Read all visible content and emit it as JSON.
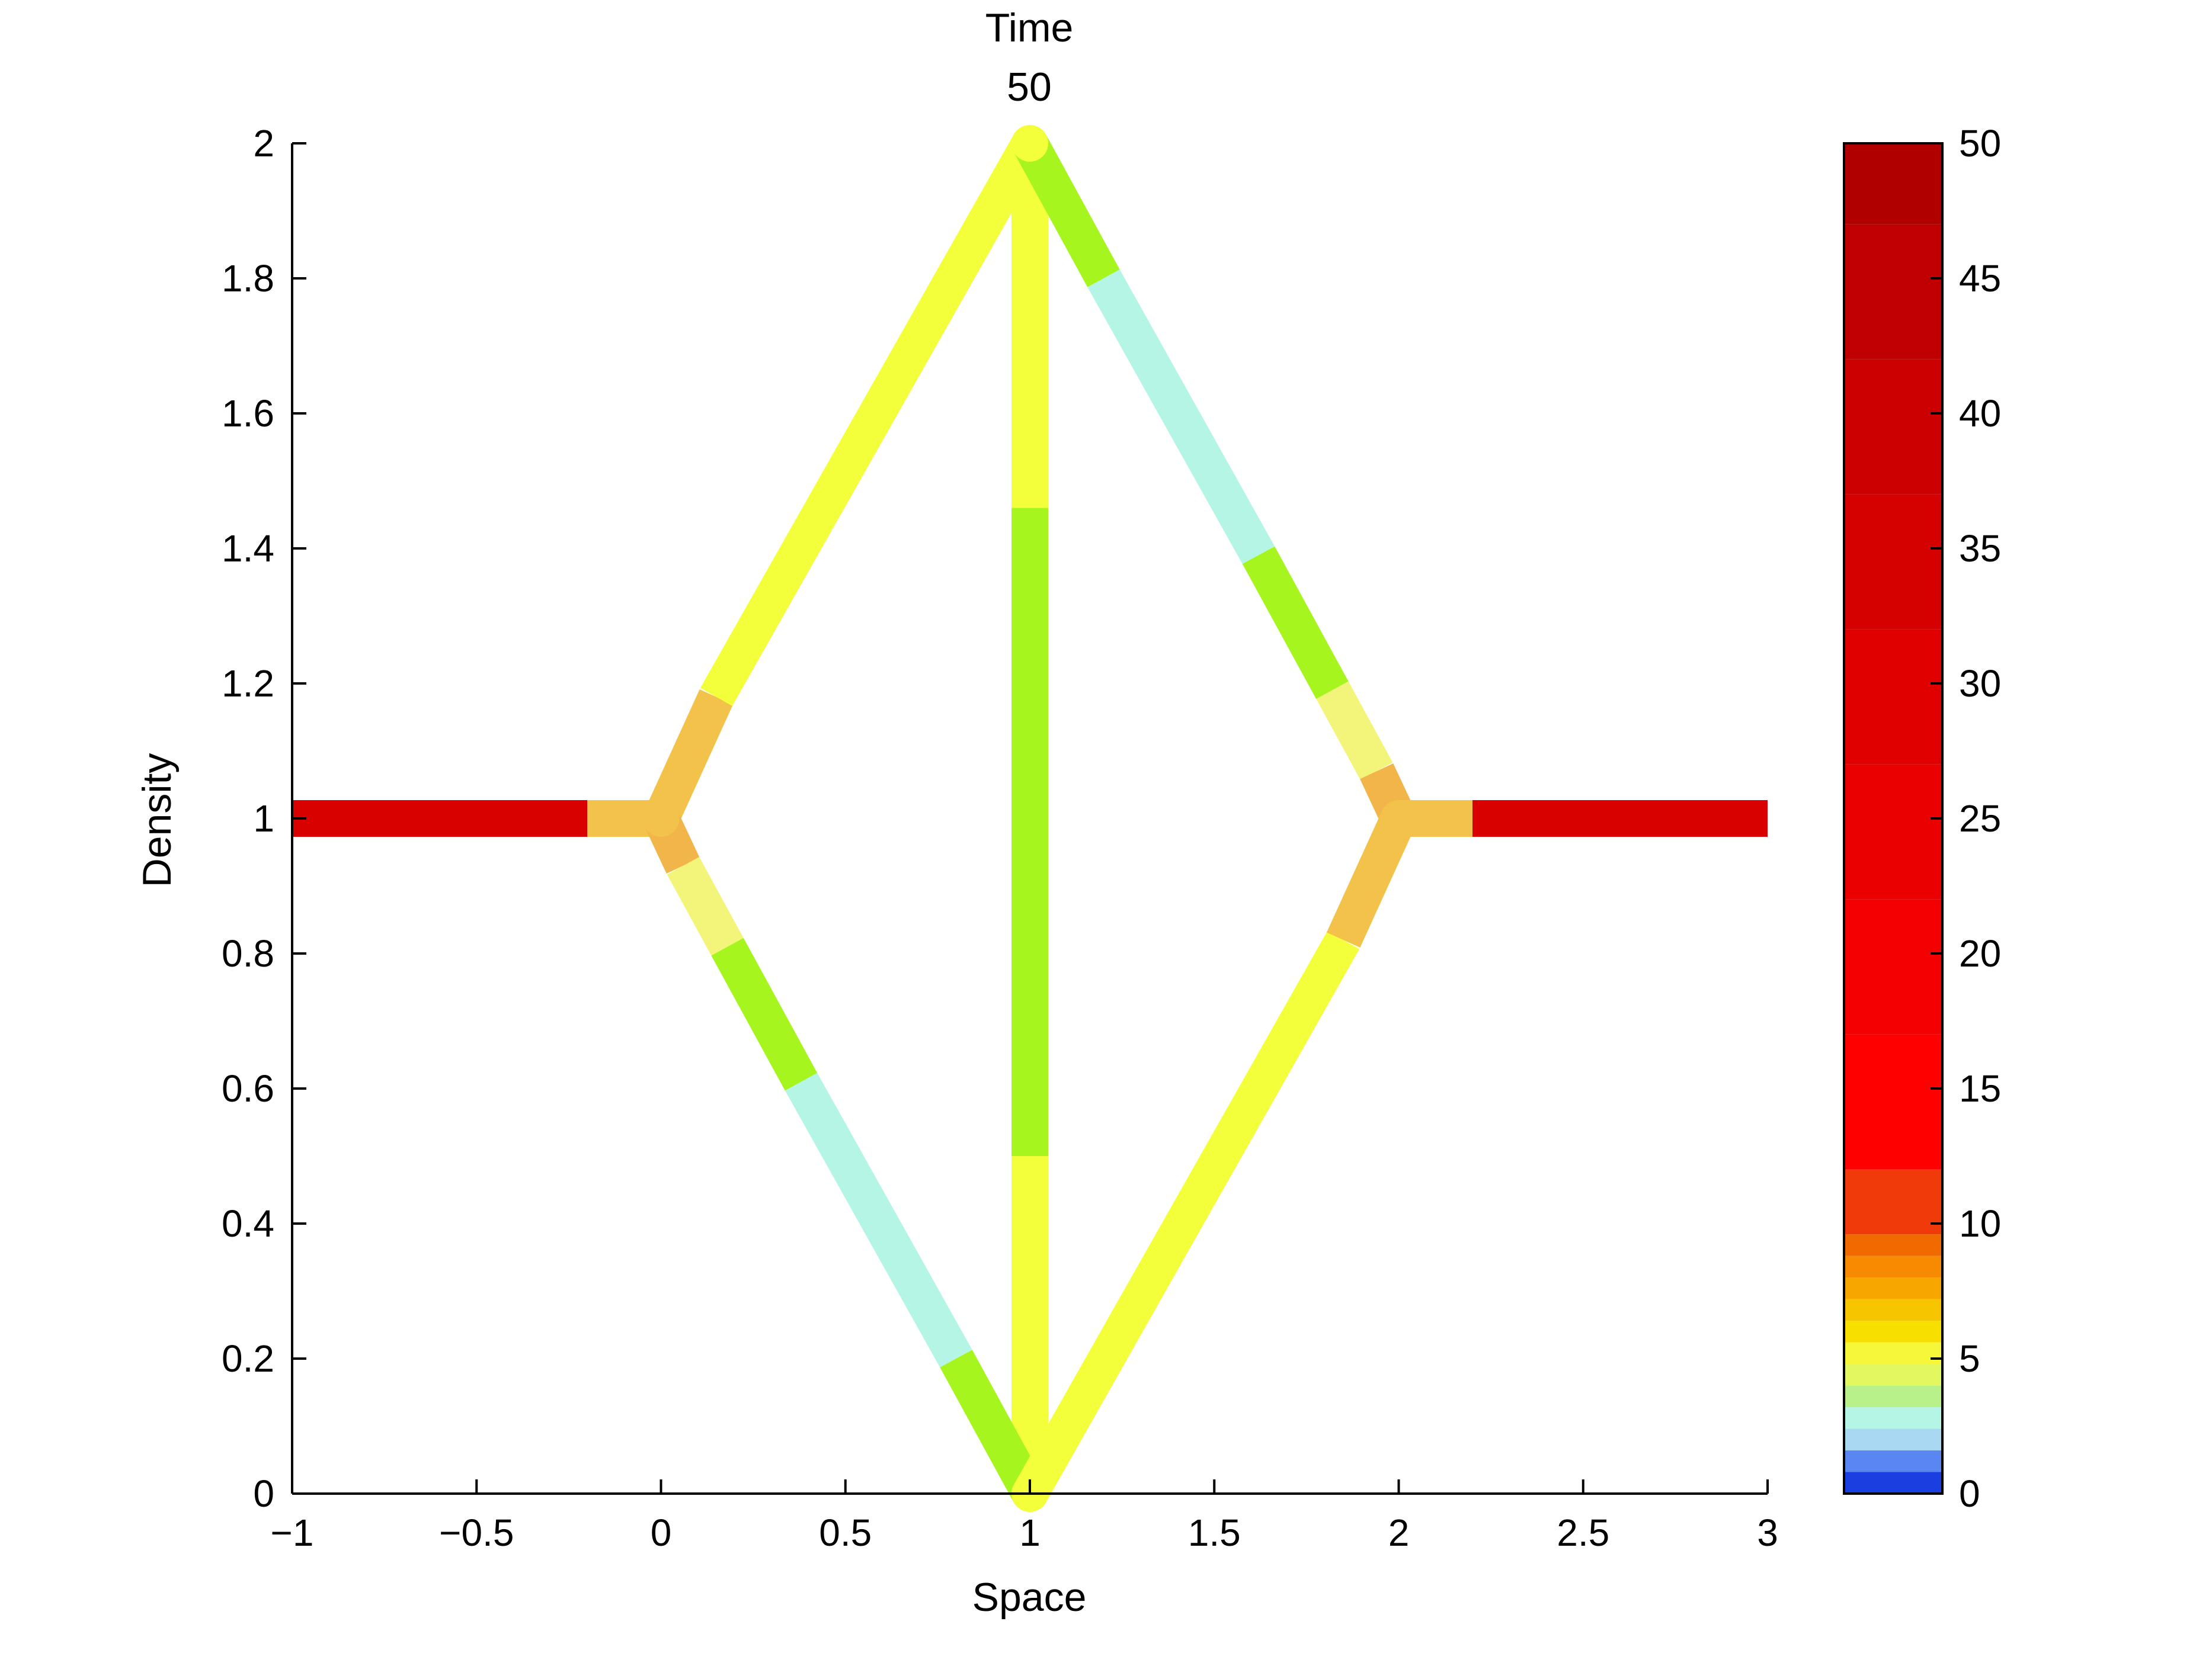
{
  "chart_data": {
    "type": "line",
    "title_lines": [
      "Time",
      "50"
    ],
    "xlabel": "Space",
    "ylabel": "Density",
    "xlim": [
      -1,
      3
    ],
    "ylim": [
      0,
      2
    ],
    "xticks": [
      -1,
      -0.5,
      0,
      0.5,
      1,
      1.5,
      2,
      2.5,
      3
    ],
    "xtick_labels": [
      "−1",
      "−0.5",
      "0",
      "0.5",
      "1",
      "1.5",
      "2",
      "2.5",
      "3"
    ],
    "yticks": [
      0,
      0.2,
      0.4,
      0.6,
      0.8,
      1,
      1.2,
      1.4,
      1.6,
      1.8,
      2
    ],
    "ytick_labels": [
      "0",
      "0.2",
      "0.4",
      "0.6",
      "0.8",
      "1",
      "1.2",
      "1.4",
      "1.6",
      "1.8",
      "2"
    ],
    "grid": false,
    "segments": [
      {
        "x": [
          -1,
          -0.2
        ],
        "y": [
          1,
          1
        ],
        "value": 42
      },
      {
        "x": [
          -0.2,
          0
        ],
        "y": [
          1,
          1
        ],
        "value": 8
      },
      {
        "x": [
          0,
          0.15
        ],
        "y": [
          1,
          1.18
        ],
        "value": 8
      },
      {
        "x": [
          0.15,
          1
        ],
        "y": [
          1.18,
          2
        ],
        "value": 4.5
      },
      {
        "x": [
          1,
          1
        ],
        "y": [
          2,
          1.46
        ],
        "value": 4.5
      },
      {
        "x": [
          1,
          1
        ],
        "y": [
          1.46,
          0.5
        ],
        "value": 3.5
      },
      {
        "x": [
          1,
          1
        ],
        "y": [
          0.5,
          0
        ],
        "value": 4.5
      },
      {
        "x": [
          0,
          0.06
        ],
        "y": [
          1,
          0.93
        ],
        "value": 7
      },
      {
        "x": [
          0.06,
          0.18
        ],
        "y": [
          0.93,
          0.81
        ],
        "value": 5
      },
      {
        "x": [
          0.18,
          0.38
        ],
        "y": [
          0.81,
          0.61
        ],
        "value": 3.5
      },
      {
        "x": [
          0.38,
          0.8
        ],
        "y": [
          0.61,
          0.2
        ],
        "value": 2.5
      },
      {
        "x": [
          0.8,
          1
        ],
        "y": [
          0.2,
          0
        ],
        "value": 3.5
      },
      {
        "x": [
          1,
          1.2
        ],
        "y": [
          2,
          1.8
        ],
        "value": 3.5
      },
      {
        "x": [
          1.2,
          1.62
        ],
        "y": [
          1.8,
          1.39
        ],
        "value": 2.5
      },
      {
        "x": [
          1.62,
          1.82
        ],
        "y": [
          1.39,
          1.19
        ],
        "value": 3.5
      },
      {
        "x": [
          1.82,
          1.94
        ],
        "y": [
          1.19,
          1.07
        ],
        "value": 5
      },
      {
        "x": [
          1.94,
          2
        ],
        "y": [
          1.07,
          1
        ],
        "value": 7
      },
      {
        "x": [
          1,
          1.85
        ],
        "y": [
          0,
          0.82
        ],
        "value": 4.5
      },
      {
        "x": [
          1.85,
          2
        ],
        "y": [
          0.82,
          1
        ],
        "value": 8
      },
      {
        "x": [
          2,
          2.2
        ],
        "y": [
          1,
          1
        ],
        "value": 8
      },
      {
        "x": [
          2.2,
          3
        ],
        "y": [
          1,
          1
        ],
        "value": 42
      }
    ],
    "colorbar": {
      "min": 0,
      "max": 50,
      "ticks": [
        0,
        5,
        10,
        15,
        20,
        25,
        30,
        35,
        40,
        45,
        50
      ],
      "tick_labels": [
        "0",
        "5",
        "10",
        "15",
        "20",
        "25",
        "30",
        "35",
        "40",
        "45",
        "50"
      ],
      "bands": [
        {
          "from": 0,
          "to": 0.8,
          "color": "#1a3fe0"
        },
        {
          "from": 0.8,
          "to": 1.6,
          "color": "#5a86f2"
        },
        {
          "from": 1.6,
          "to": 2.4,
          "color": "#a9d8f2"
        },
        {
          "from": 2.4,
          "to": 3.2,
          "color": "#b5f5e6"
        },
        {
          "from": 3.2,
          "to": 4.0,
          "color": "#b8f08a"
        },
        {
          "from": 4.0,
          "to": 4.8,
          "color": "#e2f760"
        },
        {
          "from": 4.8,
          "to": 5.6,
          "color": "#f7f73a"
        },
        {
          "from": 5.6,
          "to": 6.4,
          "color": "#f7e000"
        },
        {
          "from": 6.4,
          "to": 7.2,
          "color": "#f7c400"
        },
        {
          "from": 7.2,
          "to": 8.0,
          "color": "#f7a600"
        },
        {
          "from": 8.0,
          "to": 8.8,
          "color": "#f78a00"
        },
        {
          "from": 8.8,
          "to": 9.6,
          "color": "#f06a00"
        },
        {
          "from": 9.6,
          "to": 12,
          "color": "#f03a0a"
        },
        {
          "from": 12,
          "to": 17,
          "color": "#ff0000"
        },
        {
          "from": 17,
          "to": 22,
          "color": "#f50000"
        },
        {
          "from": 22,
          "to": 27,
          "color": "#eb0000"
        },
        {
          "from": 27,
          "to": 32,
          "color": "#e00000"
        },
        {
          "from": 32,
          "to": 37,
          "color": "#d50000"
        },
        {
          "from": 37,
          "to": 42,
          "color": "#cc0000"
        },
        {
          "from": 42,
          "to": 47,
          "color": "#c00000"
        },
        {
          "from": 47,
          "to": 50,
          "color": "#b00000"
        }
      ]
    },
    "value_colors": [
      {
        "value": 2.5,
        "color": "#b5f5e6"
      },
      {
        "value": 3.5,
        "color": "#a6f51e"
      },
      {
        "value": 4.5,
        "color": "#f4ff3c"
      },
      {
        "value": 5,
        "color": "#f2f57a"
      },
      {
        "value": 7,
        "color": "#f2b54a"
      },
      {
        "value": 8,
        "color": "#f2c24a"
      },
      {
        "value": 42,
        "color": "#d90000"
      }
    ]
  }
}
